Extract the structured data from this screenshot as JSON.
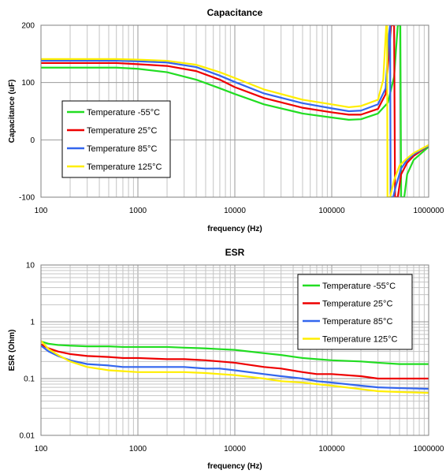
{
  "chart_data": [
    {
      "type": "line",
      "title": "Capacitance",
      "xlabel": "frequency (Hz)",
      "ylabel": "Capacitance (uF)",
      "xscale": "log",
      "xlim": [
        100,
        1000000
      ],
      "ylim": [
        -100,
        200
      ],
      "xticks": [
        100,
        1000,
        10000,
        100000,
        1000000
      ],
      "xtick_labels": [
        "100",
        "1000",
        "10000",
        "100000",
        "1000000"
      ],
      "yticks": [
        -100,
        0,
        100,
        200
      ],
      "ytick_labels": [
        "-100",
        "0",
        "100",
        "200"
      ],
      "grid": true,
      "legend_position": "middle-left",
      "series": [
        {
          "name": "Temperature -55°C",
          "color": "#22dd22",
          "x": [
            100,
            300,
            600,
            1000,
            2000,
            4000,
            7000,
            10000,
            20000,
            50000,
            100000,
            150000,
            200000,
            300000,
            380000,
            440000,
            480000,
            500000,
            510000,
            520000,
            540000,
            560000,
            600000,
            700000,
            1000000
          ],
          "y": [
            126,
            126,
            126,
            124,
            118,
            105,
            90,
            80,
            62,
            46,
            39,
            35,
            36,
            46,
            65,
            110,
            200,
            200,
            200,
            -100,
            -100,
            -100,
            -60,
            -35,
            -12
          ]
        },
        {
          "name": "Temperature 25°C",
          "color": "#ee0000",
          "x": [
            100,
            300,
            600,
            1000,
            2000,
            4000,
            7000,
            10000,
            20000,
            50000,
            100000,
            150000,
            200000,
            300000,
            360000,
            410000,
            430000,
            440000,
            450000,
            460000,
            480000,
            520000,
            600000,
            700000,
            1000000
          ],
          "y": [
            134,
            134,
            134,
            132,
            129,
            120,
            105,
            92,
            73,
            56,
            48,
            44,
            44,
            54,
            80,
            200,
            200,
            200,
            -100,
            -100,
            -100,
            -60,
            -40,
            -28,
            -10
          ]
        },
        {
          "name": "Temperature 85°C",
          "color": "#3366ee",
          "x": [
            100,
            300,
            600,
            1000,
            2000,
            4000,
            7000,
            10000,
            20000,
            50000,
            100000,
            150000,
            200000,
            300000,
            360000,
            390000,
            400000,
            405000,
            415000,
            430000,
            460000,
            520000,
            600000,
            700000,
            1000000
          ],
          "y": [
            138,
            138,
            138,
            137,
            135,
            127,
            112,
            101,
            81,
            64,
            55,
            50,
            51,
            62,
            90,
            185,
            200,
            -100,
            -100,
            -100,
            -80,
            -50,
            -35,
            -25,
            -10
          ]
        },
        {
          "name": "Temperature 125°C",
          "color": "#ffee00",
          "x": [
            100,
            300,
            600,
            1000,
            2000,
            4000,
            7000,
            10000,
            20000,
            50000,
            100000,
            150000,
            200000,
            300000,
            340000,
            365000,
            372000,
            376000,
            385000,
            400000,
            440000,
            500000,
            600000,
            700000,
            1000000
          ],
          "y": [
            141,
            141,
            141,
            140,
            138,
            131,
            118,
            108,
            88,
            70,
            62,
            57,
            59,
            70,
            105,
            200,
            200,
            -100,
            -100,
            -100,
            -70,
            -45,
            -32,
            -23,
            -9
          ]
        }
      ]
    },
    {
      "type": "line",
      "title": "ESR",
      "xlabel": "frequency (Hz)",
      "ylabel": "ESR (Ohm)",
      "xscale": "log",
      "yscale": "log",
      "xlim": [
        100,
        1000000
      ],
      "ylim": [
        0.01,
        10
      ],
      "xticks": [
        100,
        1000,
        10000,
        100000,
        1000000
      ],
      "xtick_labels": [
        "100",
        "1000",
        "10000",
        "100000",
        "1000000"
      ],
      "yticks": [
        0.01,
        0.1,
        1,
        10
      ],
      "ytick_labels": [
        "0.01",
        "0.1",
        "1",
        "10"
      ],
      "grid": true,
      "legend_position": "top-right",
      "series": [
        {
          "name": "Temperature -55°C",
          "color": "#22dd22",
          "x": [
            100,
            120,
            150,
            200,
            300,
            500,
            700,
            1000,
            2000,
            3000,
            5000,
            7000,
            10000,
            20000,
            30000,
            50000,
            70000,
            100000,
            200000,
            300000,
            500000,
            1000000
          ],
          "y": [
            0.45,
            0.41,
            0.39,
            0.38,
            0.37,
            0.37,
            0.36,
            0.36,
            0.36,
            0.35,
            0.34,
            0.33,
            0.32,
            0.28,
            0.26,
            0.23,
            0.22,
            0.21,
            0.2,
            0.19,
            0.18,
            0.18
          ]
        },
        {
          "name": "Temperature 25°C",
          "color": "#ee0000",
          "x": [
            100,
            120,
            150,
            200,
            300,
            500,
            700,
            1000,
            2000,
            3000,
            5000,
            7000,
            10000,
            20000,
            30000,
            50000,
            70000,
            100000,
            200000,
            300000,
            500000,
            1000000
          ],
          "y": [
            0.4,
            0.34,
            0.3,
            0.27,
            0.25,
            0.24,
            0.23,
            0.23,
            0.22,
            0.22,
            0.21,
            0.2,
            0.19,
            0.16,
            0.15,
            0.13,
            0.12,
            0.12,
            0.11,
            0.1,
            0.1,
            0.1
          ]
        },
        {
          "name": "Temperature 85°C",
          "color": "#3366ee",
          "x": [
            100,
            120,
            150,
            200,
            300,
            500,
            700,
            1000,
            2000,
            3000,
            5000,
            7000,
            10000,
            20000,
            30000,
            50000,
            70000,
            100000,
            200000,
            300000,
            500000,
            1000000
          ],
          "y": [
            0.38,
            0.3,
            0.25,
            0.21,
            0.18,
            0.17,
            0.16,
            0.16,
            0.16,
            0.16,
            0.15,
            0.15,
            0.14,
            0.12,
            0.11,
            0.1,
            0.09,
            0.085,
            0.075,
            0.07,
            0.068,
            0.066
          ]
        },
        {
          "name": "Temperature 125°C",
          "color": "#ffee00",
          "x": [
            100,
            120,
            150,
            200,
            300,
            500,
            700,
            1000,
            2000,
            3000,
            5000,
            7000,
            10000,
            20000,
            30000,
            50000,
            70000,
            100000,
            200000,
            300000,
            500000,
            1000000
          ],
          "y": [
            0.46,
            0.33,
            0.26,
            0.2,
            0.16,
            0.14,
            0.135,
            0.13,
            0.13,
            0.13,
            0.125,
            0.12,
            0.115,
            0.1,
            0.09,
            0.085,
            0.08,
            0.075,
            0.065,
            0.06,
            0.058,
            0.056
          ]
        }
      ]
    }
  ]
}
